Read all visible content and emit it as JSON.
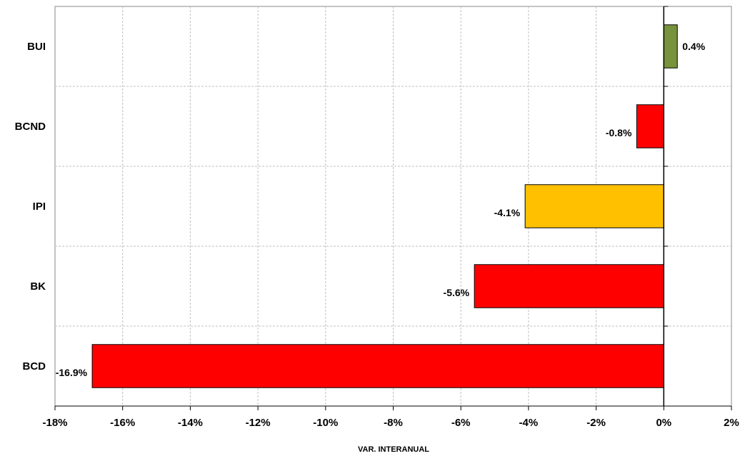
{
  "chart_data": {
    "type": "bar",
    "orientation": "horizontal",
    "categories": [
      "BUI",
      "BCND",
      "IPI",
      "BK",
      "BCD"
    ],
    "values": [
      0.4,
      -0.8,
      -4.1,
      -5.6,
      -16.9
    ],
    "data_labels": [
      "0.4%",
      "-0.8%",
      "-4.1%",
      "-5.6%",
      "-16.9%"
    ],
    "bar_colors": [
      "#77933C",
      "#FF0000",
      "#FFC000",
      "#FF0000",
      "#FF0000"
    ],
    "xlim": [
      -18,
      2
    ],
    "x_ticks": [
      -18,
      -16,
      -14,
      -12,
      -10,
      -8,
      -6,
      -4,
      -2,
      0,
      2
    ],
    "x_tick_labels": [
      "-18%",
      "-16%",
      "-14%",
      "-12%",
      "-10%",
      "-8%",
      "-6%",
      "-4%",
      "-2%",
      "0%",
      "2%"
    ],
    "xlabel": "VAR. INTERANUAL",
    "ylabel": "",
    "title": "",
    "grid": true,
    "legend": false
  },
  "colors": {
    "grid": "#C0C0C0",
    "axis": "#000000",
    "bar_border": "#000000",
    "background": "#FFFFFF"
  }
}
